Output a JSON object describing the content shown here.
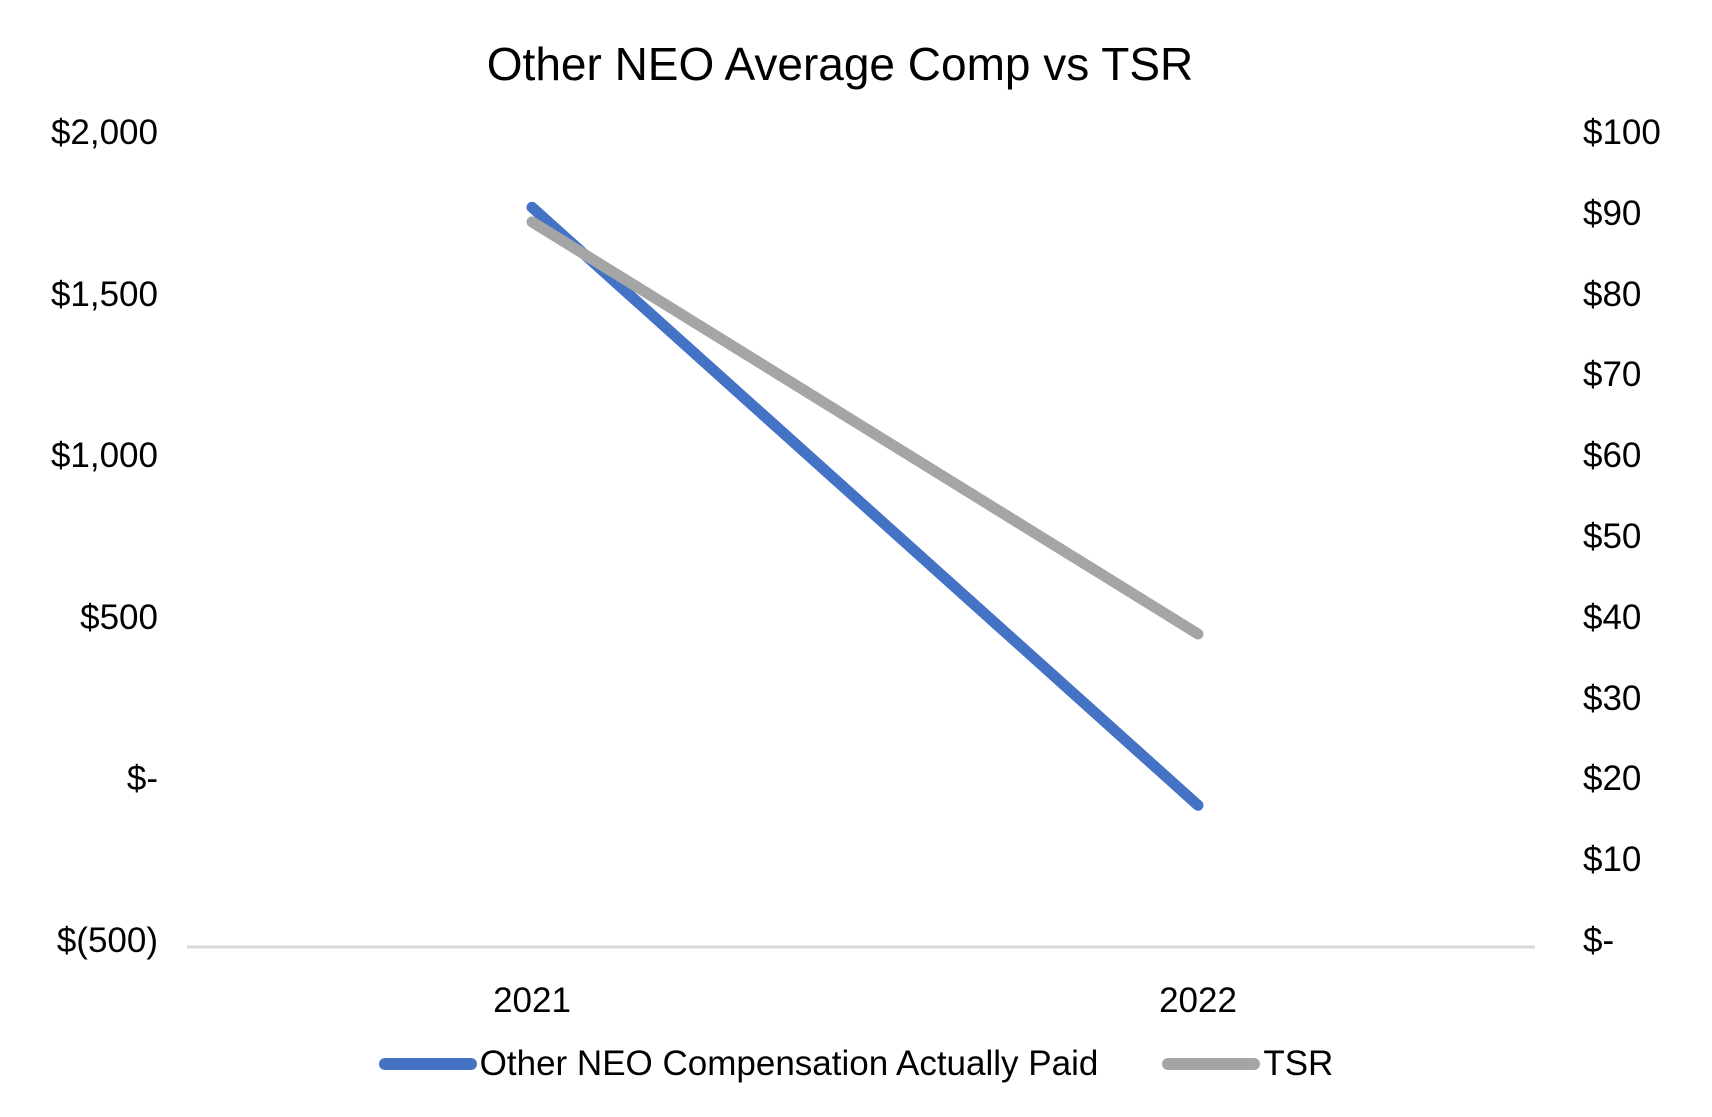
{
  "title": "Other NEO Average Comp vs TSR",
  "chart_data": {
    "type": "line",
    "title": "Other NEO Average Comp vs TSR",
    "categories": [
      "2021",
      "2022"
    ],
    "series": [
      {
        "name": "Other NEO Compensation Actually Paid",
        "axis": "left",
        "color": "#4472C4",
        "values": [
          1770,
          -80
        ]
      },
      {
        "name": "TSR",
        "axis": "right",
        "color": "#A5A5A5",
        "values": [
          89,
          38
        ]
      }
    ],
    "left_axis": {
      "min": -500,
      "max": 2000,
      "tick_interval": 500,
      "tick_labels": [
        "$2,000",
        "$1,500",
        "$1,000",
        "$500",
        "$-",
        "$(500)"
      ]
    },
    "right_axis": {
      "min": 0,
      "max": 100,
      "tick_interval": 10,
      "tick_labels": [
        "$100",
        "$90",
        "$80",
        "$70",
        "$60",
        "$50",
        "$40",
        "$30",
        "$20",
        "$10",
        "$-"
      ]
    },
    "legend_position": "bottom",
    "gridlines": "baseline only",
    "baseline_color": "#D9D9D9",
    "text_color": "#000000",
    "line_width": 11
  },
  "legend": {
    "items": [
      {
        "label": "Other NEO Compensation Actually Paid",
        "color": "#4472C4"
      },
      {
        "label": "TSR",
        "color": "#A5A5A5"
      }
    ]
  }
}
